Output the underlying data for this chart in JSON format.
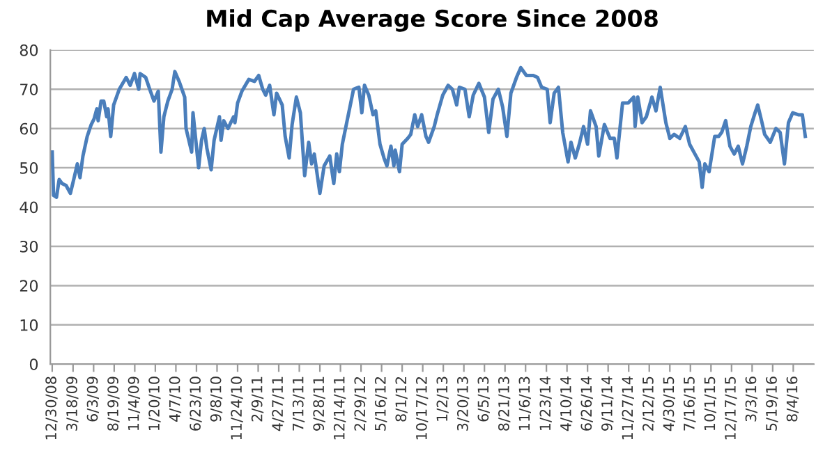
{
  "chart_data": {
    "type": "line",
    "title": "Mid Cap Average Score Since 2008",
    "x": [
      "2008-12-30",
      "2009-01-04",
      "2009-01-15",
      "2009-01-25",
      "2009-02-05",
      "2009-02-20",
      "2009-03-08",
      "2009-03-24",
      "2009-04-03",
      "2009-04-13",
      "2009-04-24",
      "2009-05-10",
      "2009-05-25",
      "2009-06-05",
      "2009-06-15",
      "2009-06-20",
      "2009-07-01",
      "2009-07-11",
      "2009-07-22",
      "2009-07-27",
      "2009-08-06",
      "2009-08-17",
      "2009-09-07",
      "2009-10-03",
      "2009-10-18",
      "2009-11-03",
      "2009-11-19",
      "2009-11-24",
      "2009-12-15",
      "2009-12-30",
      "2010-01-15",
      "2010-01-31",
      "2010-02-10",
      "2010-02-21",
      "2010-03-08",
      "2010-03-24",
      "2010-04-03",
      "2010-04-19",
      "2010-05-10",
      "2010-05-15",
      "2010-06-05",
      "2010-06-10",
      "2010-07-01",
      "2010-07-12",
      "2010-07-22",
      "2010-08-01",
      "2010-08-17",
      "2010-08-28",
      "2010-09-17",
      "2010-09-23",
      "2010-10-03",
      "2010-10-19",
      "2010-11-09",
      "2010-11-14",
      "2010-11-24",
      "2010-12-10",
      "2011-01-05",
      "2011-01-26",
      "2011-02-11",
      "2011-02-26",
      "2011-03-09",
      "2011-03-24",
      "2011-04-09",
      "2011-04-19",
      "2011-05-10",
      "2011-05-21",
      "2011-06-05",
      "2011-06-16",
      "2011-07-02",
      "2011-07-17",
      "2011-08-02",
      "2011-08-17",
      "2011-08-28",
      "2011-09-07",
      "2011-09-28",
      "2011-10-14",
      "2011-11-04",
      "2011-11-19",
      "2011-11-30",
      "2011-12-10",
      "2011-12-21",
      "2012-01-05",
      "2012-02-01",
      "2012-02-21",
      "2012-03-03",
      "2012-03-13",
      "2012-03-29",
      "2012-04-14",
      "2012-04-24",
      "2012-05-10",
      "2012-05-25",
      "2012-06-05",
      "2012-06-20",
      "2012-07-01",
      "2012-07-06",
      "2012-07-22",
      "2012-08-01",
      "2012-08-22",
      "2012-09-02",
      "2012-09-17",
      "2012-09-28",
      "2012-10-13",
      "2012-10-29",
      "2012-11-08",
      "2012-11-29",
      "2012-12-10",
      "2012-12-31",
      "2013-01-20",
      "2013-02-05",
      "2013-02-21",
      "2013-03-03",
      "2013-03-24",
      "2013-04-09",
      "2013-04-24",
      "2013-05-15",
      "2013-06-05",
      "2013-06-21",
      "2013-07-07",
      "2013-07-27",
      "2013-08-12",
      "2013-08-28",
      "2013-09-12",
      "2013-10-03",
      "2013-10-19",
      "2013-11-09",
      "2013-12-05",
      "2013-12-21",
      "2014-01-05",
      "2014-01-26",
      "2014-02-06",
      "2014-02-21",
      "2014-03-09",
      "2014-03-25",
      "2014-04-14",
      "2014-04-25",
      "2014-05-11",
      "2014-05-26",
      "2014-06-11",
      "2014-06-26",
      "2014-07-07",
      "2014-07-28",
      "2014-08-07",
      "2014-08-28",
      "2014-09-18",
      "2014-10-04",
      "2014-10-14",
      "2014-11-04",
      "2014-11-25",
      "2014-12-16",
      "2014-12-21",
      "2014-12-31",
      "2015-01-16",
      "2015-02-01",
      "2015-02-22",
      "2015-03-09",
      "2015-03-25",
      "2015-04-15",
      "2015-04-30",
      "2015-05-16",
      "2015-06-06",
      "2015-06-27",
      "2015-07-13",
      "2015-08-02",
      "2015-08-18",
      "2015-08-29",
      "2015-09-08",
      "2015-09-24",
      "2015-10-15",
      "2015-10-30",
      "2015-11-10",
      "2015-11-25",
      "2015-12-11",
      "2015-12-27",
      "2016-01-11",
      "2016-01-27",
      "2016-02-12",
      "2016-02-27",
      "2016-03-14",
      "2016-03-24",
      "2016-04-09",
      "2016-04-19",
      "2016-05-10",
      "2016-05-31",
      "2016-06-16",
      "2016-07-02",
      "2016-07-17",
      "2016-08-02",
      "2016-08-23",
      "2016-09-07",
      "2016-09-18"
    ],
    "series": [
      {
        "color": "#4a7ebb",
        "values": [
          54,
          43,
          42.5,
          47,
          46,
          45.5,
          43.5,
          48,
          51,
          47.5,
          53,
          58,
          61,
          62.5,
          65,
          62,
          67,
          67,
          63,
          65,
          58,
          66,
          70,
          73,
          71,
          74,
          70,
          74,
          73,
          70,
          67,
          69.5,
          54,
          63,
          67,
          70,
          74.5,
          72,
          68,
          60,
          54,
          64,
          50,
          57,
          60,
          55,
          49.5,
          57,
          63,
          57,
          62,
          60,
          63,
          61.5,
          66.5,
          69.5,
          72.5,
          72,
          73.5,
          70,
          68.5,
          71,
          63.5,
          69,
          66,
          58,
          52.5,
          61,
          68,
          64,
          48,
          56.5,
          51,
          53.5,
          43.5,
          50.5,
          53,
          46,
          53.5,
          49,
          56,
          61,
          70,
          70.5,
          64,
          71,
          68.5,
          63.5,
          64.5,
          56,
          52.5,
          50.5,
          55.5,
          50.5,
          54.5,
          49,
          56,
          57.5,
          58.5,
          63.5,
          60.5,
          63.5,
          58,
          56.5,
          60.5,
          63.5,
          68.5,
          71,
          70,
          66,
          70.5,
          70,
          63,
          68.5,
          71.5,
          68,
          59,
          67.5,
          70,
          65.5,
          58,
          69,
          73,
          75.5,
          73.5,
          73.5,
          73,
          70.5,
          70,
          61.5,
          69,
          70.5,
          59,
          51.5,
          56.5,
          52.5,
          56,
          60.5,
          56,
          64.5,
          60.5,
          53,
          61,
          57.5,
          57.5,
          52.5,
          66.5,
          66.5,
          68,
          60.5,
          68,
          61.5,
          63,
          68,
          64.5,
          70.5,
          61.5,
          57.5,
          58.5,
          57.5,
          60.5,
          56,
          53.5,
          51.5,
          45,
          51,
          49,
          58,
          58,
          59,
          62,
          55.5,
          53.5,
          55.5,
          51,
          55.5,
          60.5,
          64,
          66,
          61.5,
          58.5,
          56.5,
          60,
          59,
          51,
          61.5,
          64,
          63.5,
          63.5,
          58
        ]
      }
    ],
    "xlim": [
      "2008-12-23",
      "2016-10-20"
    ],
    "xticks": [
      {
        "value": "2008-12-30",
        "label": "12/30/08"
      },
      {
        "value": "2009-03-18",
        "label": "3/18/09"
      },
      {
        "value": "2009-06-03",
        "label": "6/3/09"
      },
      {
        "value": "2009-08-19",
        "label": "8/19/09"
      },
      {
        "value": "2009-11-04",
        "label": "11/4/09"
      },
      {
        "value": "2010-01-20",
        "label": "1/20/10"
      },
      {
        "value": "2010-04-07",
        "label": "4/7/10"
      },
      {
        "value": "2010-06-23",
        "label": "6/23/10"
      },
      {
        "value": "2010-09-08",
        "label": "9/8/10"
      },
      {
        "value": "2010-11-24",
        "label": "11/24/10"
      },
      {
        "value": "2011-02-09",
        "label": "2/9/11"
      },
      {
        "value": "2011-04-27",
        "label": "4/27/11"
      },
      {
        "value": "2011-07-13",
        "label": "7/13/11"
      },
      {
        "value": "2011-09-28",
        "label": "9/28/11"
      },
      {
        "value": "2011-12-14",
        "label": "12/14/11"
      },
      {
        "value": "2012-02-29",
        "label": "2/29/12"
      },
      {
        "value": "2012-05-16",
        "label": "5/16/12"
      },
      {
        "value": "2012-08-01",
        "label": "8/1/12"
      },
      {
        "value": "2012-10-17",
        "label": "10/17/12"
      },
      {
        "value": "2013-01-02",
        "label": "1/2/13"
      },
      {
        "value": "2013-03-20",
        "label": "3/20/13"
      },
      {
        "value": "2013-06-05",
        "label": "6/5/13"
      },
      {
        "value": "2013-08-21",
        "label": "8/21/13"
      },
      {
        "value": "2013-11-06",
        "label": "11/6/13"
      },
      {
        "value": "2014-01-23",
        "label": "1/23/14"
      },
      {
        "value": "2014-04-10",
        "label": "4/10/14"
      },
      {
        "value": "2014-06-26",
        "label": "6/26/14"
      },
      {
        "value": "2014-09-11",
        "label": "9/11/14"
      },
      {
        "value": "2014-11-27",
        "label": "11/27/14"
      },
      {
        "value": "2015-02-12",
        "label": "2/12/15"
      },
      {
        "value": "2015-04-30",
        "label": "4/30/15"
      },
      {
        "value": "2015-07-16",
        "label": "7/16/15"
      },
      {
        "value": "2015-10-01",
        "label": "10/1/15"
      },
      {
        "value": "2015-12-17",
        "label": "12/17/15"
      },
      {
        "value": "2016-03-03",
        "label": "3/3/16"
      },
      {
        "value": "2016-05-19",
        "label": "5/19/16"
      },
      {
        "value": "2016-08-04",
        "label": "8/4/16"
      }
    ],
    "ylim": [
      0,
      80
    ],
    "yticks": [
      0,
      10,
      20,
      30,
      40,
      50,
      60,
      70,
      80
    ],
    "grid": "y",
    "line_style": "solid"
  }
}
